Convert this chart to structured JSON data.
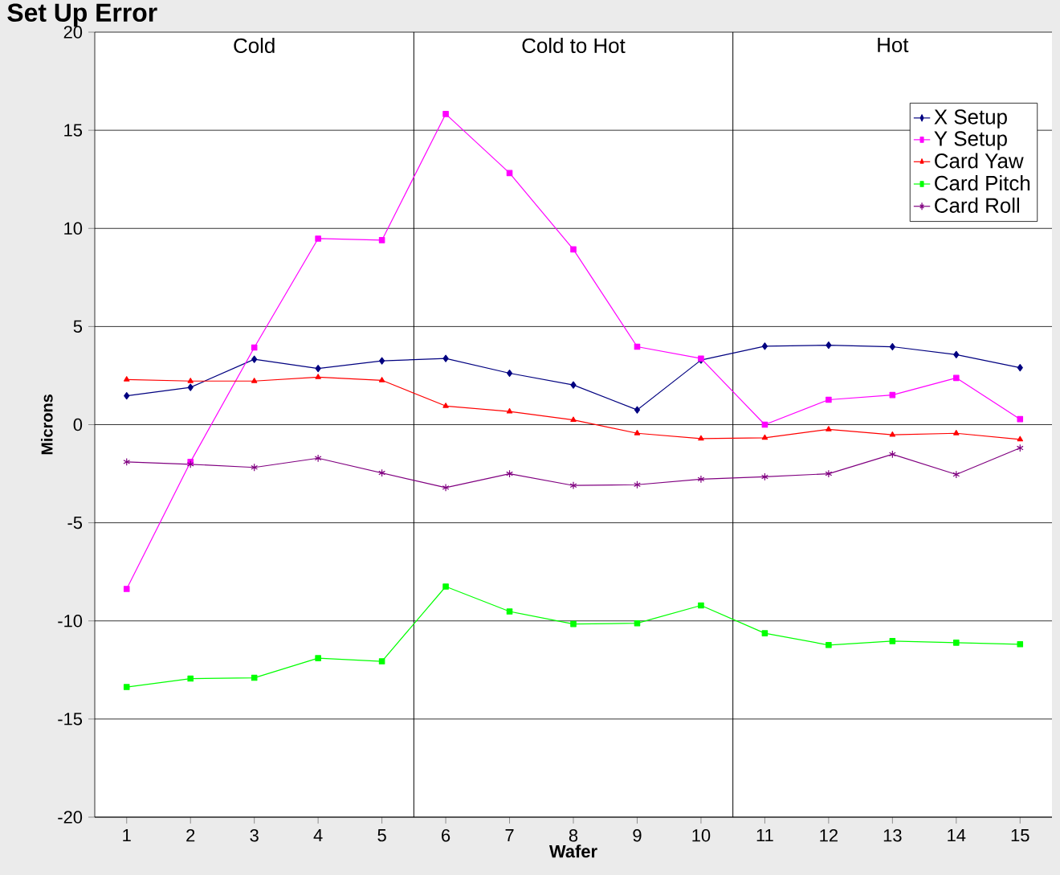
{
  "chart_data": {
    "type": "line",
    "title": "Set Up Error",
    "xlabel": "Wafer",
    "ylabel": "Microns",
    "x": [
      1,
      2,
      3,
      4,
      5,
      6,
      7,
      8,
      9,
      10,
      11,
      12,
      13,
      14,
      15
    ],
    "xlim": [
      0.5,
      15.5
    ],
    "xticks": [
      1,
      2,
      3,
      4,
      5,
      6,
      7,
      8,
      9,
      10,
      11,
      12,
      13,
      14,
      15
    ],
    "ylim": [
      -20,
      20
    ],
    "yticks": [
      -20,
      -15,
      -10,
      -5,
      0,
      5,
      10,
      15,
      20
    ],
    "grid": "y",
    "legend": "top right",
    "series": [
      {
        "name": "X Setup",
        "color": "#000080",
        "marker": "diamond",
        "values": [
          1.47,
          1.9,
          3.33,
          2.86,
          3.25,
          3.37,
          2.62,
          2.02,
          0.75,
          3.29,
          4.0,
          4.05,
          3.97,
          3.57,
          2.9
        ]
      },
      {
        "name": "Y Setup",
        "color": "#ff00ff",
        "marker": "square",
        "values": [
          -8.37,
          -1.9,
          3.93,
          9.48,
          9.4,
          15.83,
          12.82,
          8.93,
          3.97,
          3.37,
          0,
          1.27,
          1.51,
          2.38,
          0.28
        ]
      },
      {
        "name": "Card Yaw",
        "color": "#ff0000",
        "marker": "triangle",
        "values": [
          2.3,
          2.22,
          2.22,
          2.42,
          2.26,
          0.95,
          0.67,
          0.24,
          -0.44,
          -0.71,
          -0.67,
          -0.24,
          -0.52,
          -0.44,
          -0.75
        ]
      },
      {
        "name": "Card Pitch",
        "color": "#00ff00",
        "marker": "square",
        "values": [
          -13.37,
          -12.94,
          -12.9,
          -11.9,
          -12.06,
          -8.25,
          -9.52,
          -10.16,
          -10.12,
          -9.21,
          -10.63,
          -11.23,
          -11.03,
          -11.11,
          -11.19
        ]
      },
      {
        "name": "Card Roll",
        "color": "#800080",
        "marker": "cross",
        "values": [
          -1.9,
          -2.02,
          -2.18,
          -1.71,
          -2.46,
          -3.21,
          -2.5,
          -3.1,
          -3.06,
          -2.78,
          -2.66,
          -2.5,
          -1.51,
          -2.54,
          -1.19
        ]
      }
    ],
    "ref_lines": [
      {
        "axis": "x",
        "value": 5.5,
        "color": "#000000"
      },
      {
        "axis": "x",
        "value": 10.5,
        "color": "#000000"
      }
    ],
    "annotations": [
      "Cold",
      "Cold to Hot",
      "Hot"
    ]
  }
}
